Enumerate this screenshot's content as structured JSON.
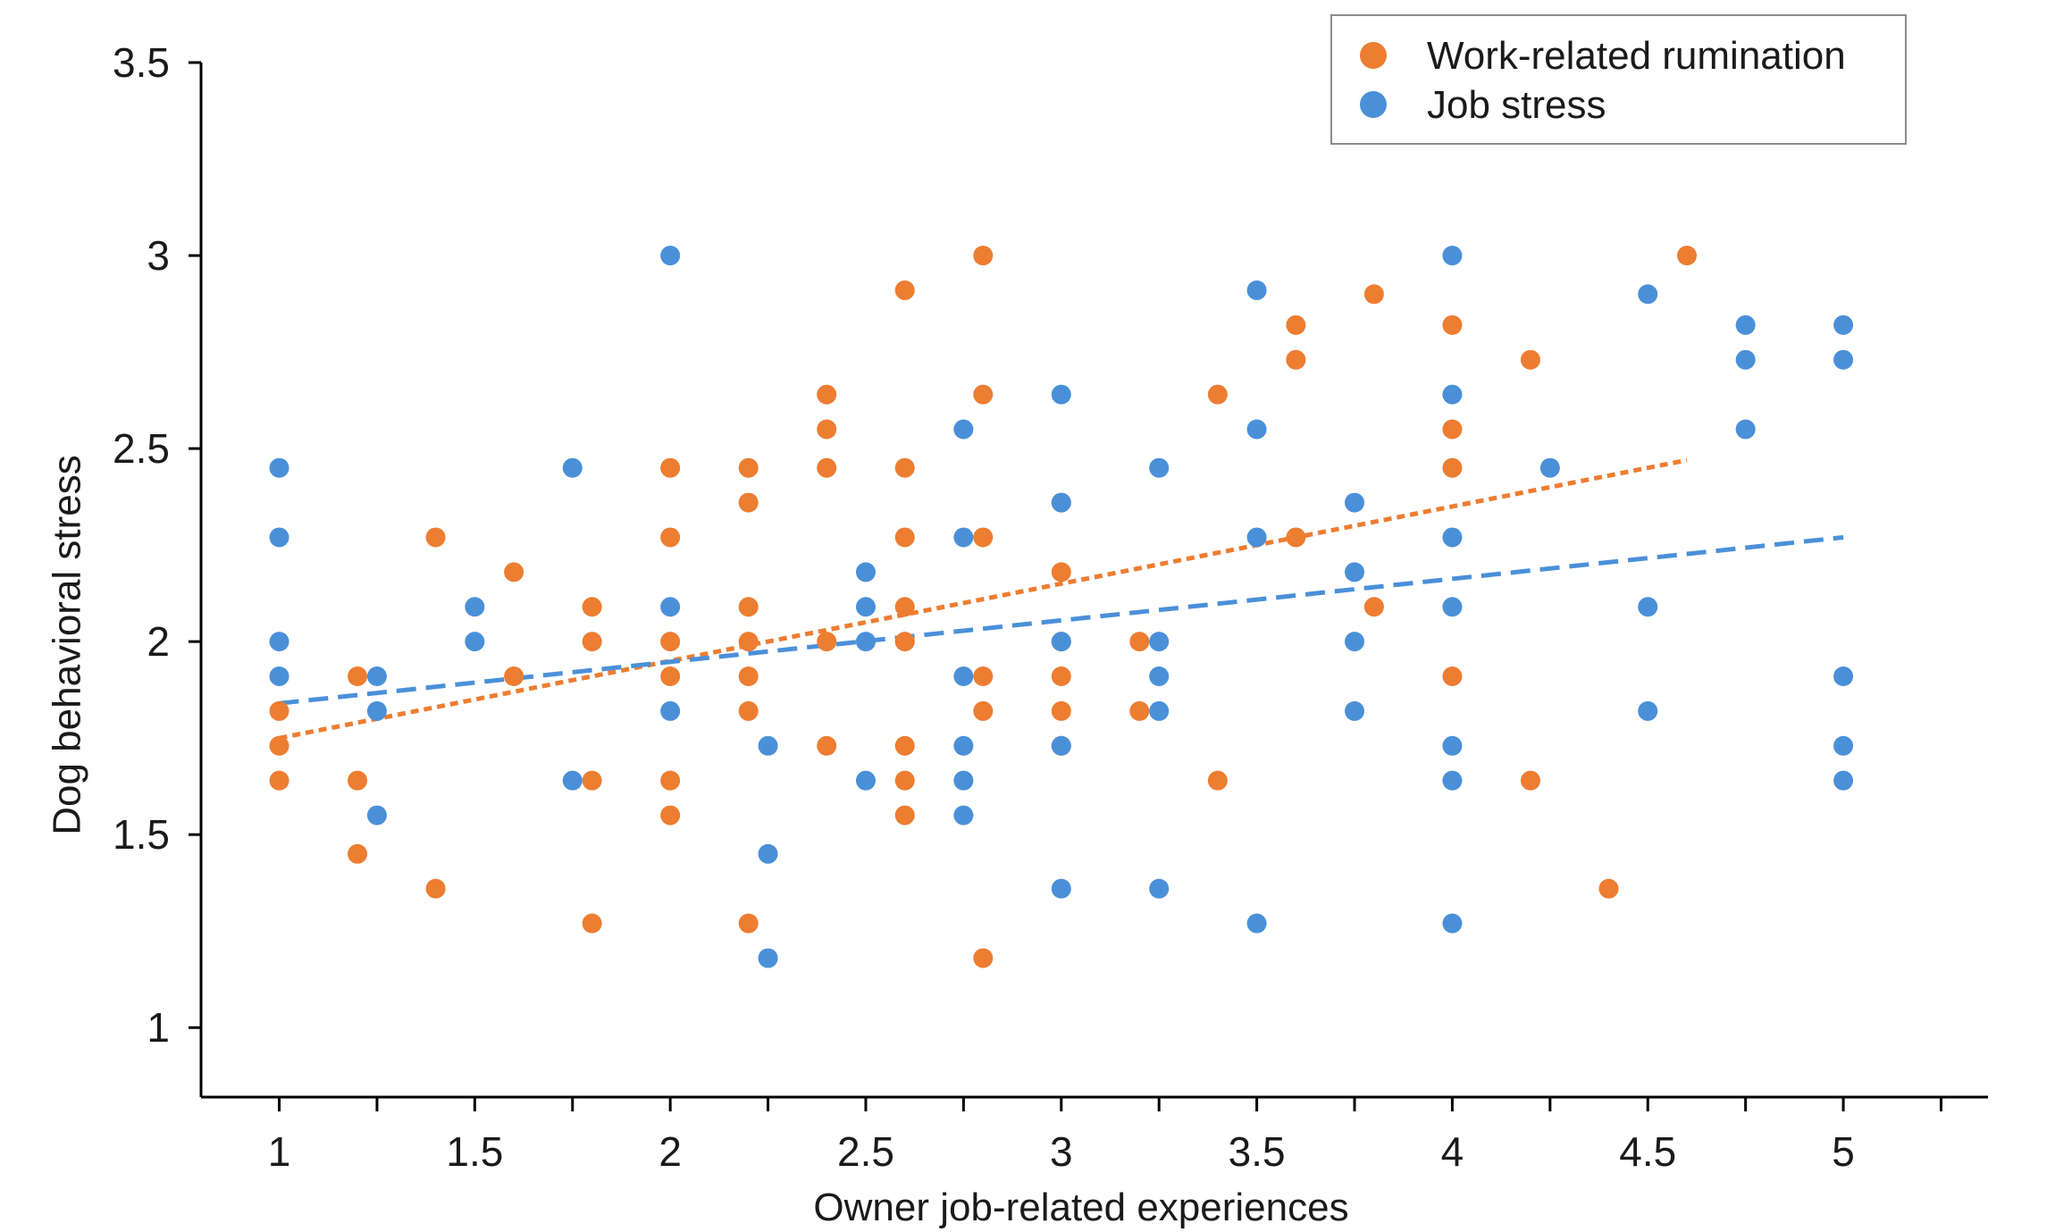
{
  "chart_data": {
    "type": "scatter",
    "title": "",
    "xlabel": "Owner job-related experiences",
    "ylabel": "Dog behavioral stress",
    "xlim": [
      0.8,
      5.37
    ],
    "ylim": [
      0.82,
      3.5
    ],
    "x_ticks": [
      1,
      1.5,
      2,
      2.5,
      3,
      3.5,
      4,
      4.5,
      5
    ],
    "x_tick_labels": [
      "1",
      "1.5",
      "2",
      "2.5",
      "3",
      "3.5",
      "4",
      "4.5",
      "5"
    ],
    "y_ticks": [
      1,
      1.5,
      2,
      2.5,
      3,
      3.5
    ],
    "y_tick_labels": [
      "1",
      "1.5",
      "2",
      "2.5",
      "3",
      "3.5"
    ],
    "grid": false,
    "legend_position": "top-right",
    "series": [
      {
        "name": "Work-related rumination",
        "color": "#ED7D31",
        "trend": {
          "style": "dotted",
          "x": [
            1,
            4.6
          ],
          "y": [
            1.75,
            2.47
          ]
        },
        "points": [
          [
            1,
            1.82
          ],
          [
            1,
            1.73
          ],
          [
            1,
            1.64
          ],
          [
            1.2,
            1.91
          ],
          [
            1.2,
            1.64
          ],
          [
            1.2,
            1.45
          ],
          [
            1.4,
            2.27
          ],
          [
            1.4,
            1.36
          ],
          [
            1.6,
            2.18
          ],
          [
            1.6,
            1.91
          ],
          [
            1.8,
            2.09
          ],
          [
            1.8,
            2.0
          ],
          [
            1.8,
            1.64
          ],
          [
            1.8,
            1.27
          ],
          [
            2,
            2.45
          ],
          [
            2,
            2.27
          ],
          [
            2,
            2.0
          ],
          [
            2,
            1.91
          ],
          [
            2,
            1.64
          ],
          [
            2,
            1.55
          ],
          [
            2.2,
            2.45
          ],
          [
            2.2,
            2.36
          ],
          [
            2.2,
            2.09
          ],
          [
            2.2,
            2.0
          ],
          [
            2.2,
            1.91
          ],
          [
            2.2,
            1.82
          ],
          [
            2.2,
            1.27
          ],
          [
            2.4,
            2.64
          ],
          [
            2.4,
            2.55
          ],
          [
            2.4,
            2.45
          ],
          [
            2.4,
            2.0
          ],
          [
            2.4,
            1.73
          ],
          [
            2.6,
            2.91
          ],
          [
            2.6,
            2.45
          ],
          [
            2.6,
            2.27
          ],
          [
            2.6,
            2.09
          ],
          [
            2.6,
            2.0
          ],
          [
            2.6,
            1.73
          ],
          [
            2.6,
            1.64
          ],
          [
            2.6,
            1.55
          ],
          [
            2.8,
            3.0
          ],
          [
            2.8,
            2.64
          ],
          [
            2.8,
            2.27
          ],
          [
            2.8,
            1.91
          ],
          [
            2.8,
            1.82
          ],
          [
            2.8,
            1.18
          ],
          [
            3,
            2.36
          ],
          [
            3,
            2.18
          ],
          [
            3,
            2.0
          ],
          [
            3,
            1.91
          ],
          [
            3,
            1.82
          ],
          [
            3,
            1.73
          ],
          [
            3.2,
            2.0
          ],
          [
            3.2,
            1.82
          ],
          [
            3.4,
            2.64
          ],
          [
            3.4,
            1.64
          ],
          [
            3.6,
            2.82
          ],
          [
            3.6,
            2.73
          ],
          [
            3.6,
            2.27
          ],
          [
            3.8,
            2.9
          ],
          [
            3.8,
            2.09
          ],
          [
            4,
            2.82
          ],
          [
            4,
            2.55
          ],
          [
            4,
            2.45
          ],
          [
            4,
            1.91
          ],
          [
            4.2,
            2.73
          ],
          [
            4.2,
            1.64
          ],
          [
            4.4,
            1.36
          ],
          [
            4.6,
            3.0
          ]
        ]
      },
      {
        "name": "Job stress",
        "color": "#4A90D9",
        "trend": {
          "style": "dashed",
          "x": [
            1,
            5
          ],
          "y": [
            1.84,
            2.27
          ]
        },
        "points": [
          [
            1,
            2.45
          ],
          [
            1,
            2.27
          ],
          [
            1,
            2.0
          ],
          [
            1,
            1.91
          ],
          [
            1.25,
            1.91
          ],
          [
            1.25,
            1.82
          ],
          [
            1.25,
            1.55
          ],
          [
            1.5,
            2.09
          ],
          [
            1.5,
            2.0
          ],
          [
            1.75,
            2.45
          ],
          [
            1.75,
            1.64
          ],
          [
            2,
            3.0
          ],
          [
            2,
            2.09
          ],
          [
            2,
            1.82
          ],
          [
            2.25,
            1.73
          ],
          [
            2.25,
            1.45
          ],
          [
            2.25,
            1.18
          ],
          [
            2.5,
            2.18
          ],
          [
            2.5,
            2.09
          ],
          [
            2.5,
            2.0
          ],
          [
            2.5,
            1.64
          ],
          [
            2.75,
            2.55
          ],
          [
            2.75,
            2.27
          ],
          [
            2.75,
            1.91
          ],
          [
            2.75,
            1.73
          ],
          [
            2.75,
            1.64
          ],
          [
            2.75,
            1.55
          ],
          [
            3,
            2.64
          ],
          [
            3,
            2.36
          ],
          [
            3,
            2.0
          ],
          [
            3,
            1.73
          ],
          [
            3,
            1.36
          ],
          [
            3.25,
            2.45
          ],
          [
            3.25,
            2.0
          ],
          [
            3.25,
            1.91
          ],
          [
            3.25,
            1.82
          ],
          [
            3.25,
            1.36
          ],
          [
            3.5,
            2.91
          ],
          [
            3.5,
            2.55
          ],
          [
            3.5,
            2.27
          ],
          [
            3.5,
            1.27
          ],
          [
            3.75,
            2.36
          ],
          [
            3.75,
            2.18
          ],
          [
            3.75,
            2.0
          ],
          [
            3.75,
            1.82
          ],
          [
            4,
            3.0
          ],
          [
            4,
            2.64
          ],
          [
            4,
            2.27
          ],
          [
            4,
            2.09
          ],
          [
            4,
            1.73
          ],
          [
            4,
            1.64
          ],
          [
            4,
            1.27
          ],
          [
            4.25,
            2.45
          ],
          [
            4.5,
            2.9
          ],
          [
            4.5,
            2.09
          ],
          [
            4.5,
            1.82
          ],
          [
            4.75,
            2.82
          ],
          [
            4.75,
            2.73
          ],
          [
            4.75,
            2.55
          ],
          [
            5,
            2.82
          ],
          [
            5,
            2.73
          ],
          [
            5,
            1.91
          ],
          [
            5,
            1.73
          ],
          [
            5,
            1.64
          ]
        ]
      }
    ]
  }
}
